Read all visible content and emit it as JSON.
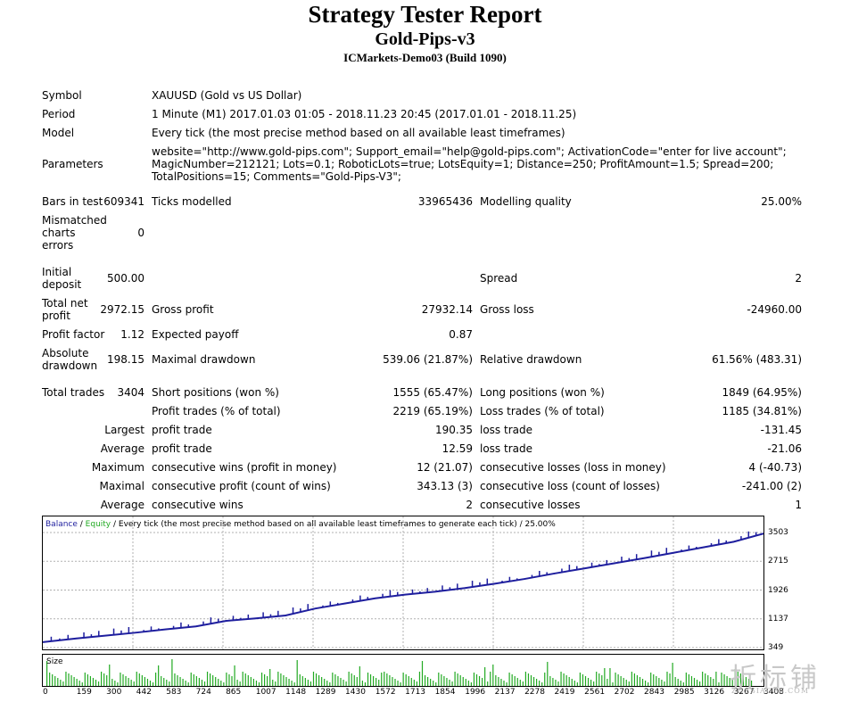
{
  "report": {
    "title": "Strategy Tester Report",
    "ea_name": "Gold-Pips-v3",
    "server": "ICMarkets-Demo03 (Build 1090)"
  },
  "info": {
    "symbol_label": "Symbol",
    "symbol_value": "XAUUSD (Gold vs US Dollar)",
    "period_label": "Period",
    "period_value": "1 Minute (M1) 2017.01.03 01:05 - 2018.11.23 20:45 (2017.01.01 - 2018.11.25)",
    "model_label": "Model",
    "model_value": "Every tick (the most precise method based on all available least timeframes)",
    "parameters_label": "Parameters",
    "parameters_value": "website=\"http://www.gold-pips.com\"; Support_email=\"help@gold-pips.com\"; ActivationCode=\"enter for live account\"; MagicNumber=212121; Lots=0.1; RoboticLots=true; LotsEquity=1; Distance=250; ProfitAmount=1.5; Spread=200; TotalPositions=15; Comments=\"Gold-Pips-V3\";"
  },
  "stats": {
    "bars_label": "Bars in test",
    "bars_value": "609341",
    "ticks_label": "Ticks modelled",
    "ticks_value": "33965436",
    "quality_label": "Modelling quality",
    "quality_value": "25.00%",
    "mismatch_label": "Mismatched charts errors",
    "mismatch_value": "0",
    "deposit_label": "Initial deposit",
    "deposit_value": "500.00",
    "spread_label": "Spread",
    "spread_value": "2",
    "netprofit_label": "Total net profit",
    "netprofit_value": "2972.15",
    "grossprofit_label": "Gross profit",
    "grossprofit_value": "27932.14",
    "grossloss_label": "Gross loss",
    "grossloss_value": "-24960.00",
    "pf_label": "Profit factor",
    "pf_value": "1.12",
    "ep_label": "Expected payoff",
    "ep_value": "0.87",
    "absdd_label": "Absolute drawdown",
    "absdd_value": "198.15",
    "maxdd_label": "Maximal drawdown",
    "maxdd_value": "539.06 (21.87%)",
    "reldd_label": "Relative drawdown",
    "reldd_value": "61.56% (483.31)",
    "trades_label": "Total trades",
    "trades_value": "3404",
    "short_label": "Short positions (won %)",
    "short_value": "1555 (65.47%)",
    "long_label": "Long positions (won %)",
    "long_value": "1849 (64.95%)",
    "pt_label": "Profit trades (% of total)",
    "pt_value": "2219 (65.19%)",
    "lt_label": "Loss trades (% of total)",
    "lt_value": "1185 (34.81%)",
    "largest_label": "Largest",
    "largest_profit_label": "profit trade",
    "largest_profit_value": "190.35",
    "largest_loss_label": "loss trade",
    "largest_loss_value": "-131.45",
    "average_label": "Average",
    "average_profit_label": "profit trade",
    "average_profit_value": "12.59",
    "average_loss_label": "loss trade",
    "average_loss_value": "-21.06",
    "maximum_label": "Maximum",
    "max_wins_label": "consecutive wins (profit in money)",
    "max_wins_value": "12 (21.07)",
    "max_losses_label": "consecutive losses (loss in money)",
    "max_losses_value": "4 (-40.73)",
    "maximal_label": "Maximal",
    "maximal_profit_label": "consecutive profit (count of wins)",
    "maximal_profit_value": "343.13 (3)",
    "maximal_loss_label": "consecutive loss (count of losses)",
    "maximal_loss_value": "-241.00 (2)",
    "avg_cons_label": "Average",
    "avg_wins_label": "consecutive wins",
    "avg_wins_value": "2",
    "avg_losses_label": "consecutive losses",
    "avg_losses_value": "1"
  },
  "chart_legend": {
    "balance": "Balance",
    "sep1": " / ",
    "equity": "Equity",
    "rest": " / Every tick (the most precise method based on all available least timeframes to generate each tick) / 25.00%"
  },
  "size_label": "Size",
  "watermark_text": "折标铺",
  "watermark_small": "ZHESIAOPU.COM",
  "colors": {
    "balance": "#1e1e9e",
    "equity": "#22aa22",
    "size_bars": "#22aa22",
    "grid": "#b0b0b0"
  },
  "chart_data": {
    "type": "line",
    "series": [
      {
        "name": "Balance",
        "x": [
          0,
          159,
          300,
          442,
          583,
          724,
          865,
          1007,
          1148,
          1289,
          1430,
          1572,
          1713,
          1854,
          1996,
          2137,
          2278,
          2419,
          2561,
          2702,
          2843,
          2985,
          3126,
          3267,
          3408
        ],
        "values": [
          500,
          600,
          680,
          760,
          850,
          930,
          1080,
          1150,
          1230,
          1420,
          1560,
          1700,
          1800,
          1880,
          1980,
          2100,
          2230,
          2380,
          2520,
          2660,
          2800,
          2950,
          3100,
          3250,
          3472
        ]
      }
    ],
    "y_ticks": [
      "3503",
      "2715",
      "1926",
      "1137",
      "349"
    ],
    "ylim": [
      349,
      3503
    ],
    "x_ticks": [
      "0",
      "159",
      "300",
      "442",
      "583",
      "724",
      "865",
      "1007",
      "1148",
      "1289",
      "1430",
      "1572",
      "1713",
      "1854",
      "1996",
      "2137",
      "2278",
      "2419",
      "2561",
      "2702",
      "2843",
      "2985",
      "3126",
      "3267",
      "3408"
    ],
    "xlim": [
      0,
      3408
    ],
    "grid": true
  }
}
